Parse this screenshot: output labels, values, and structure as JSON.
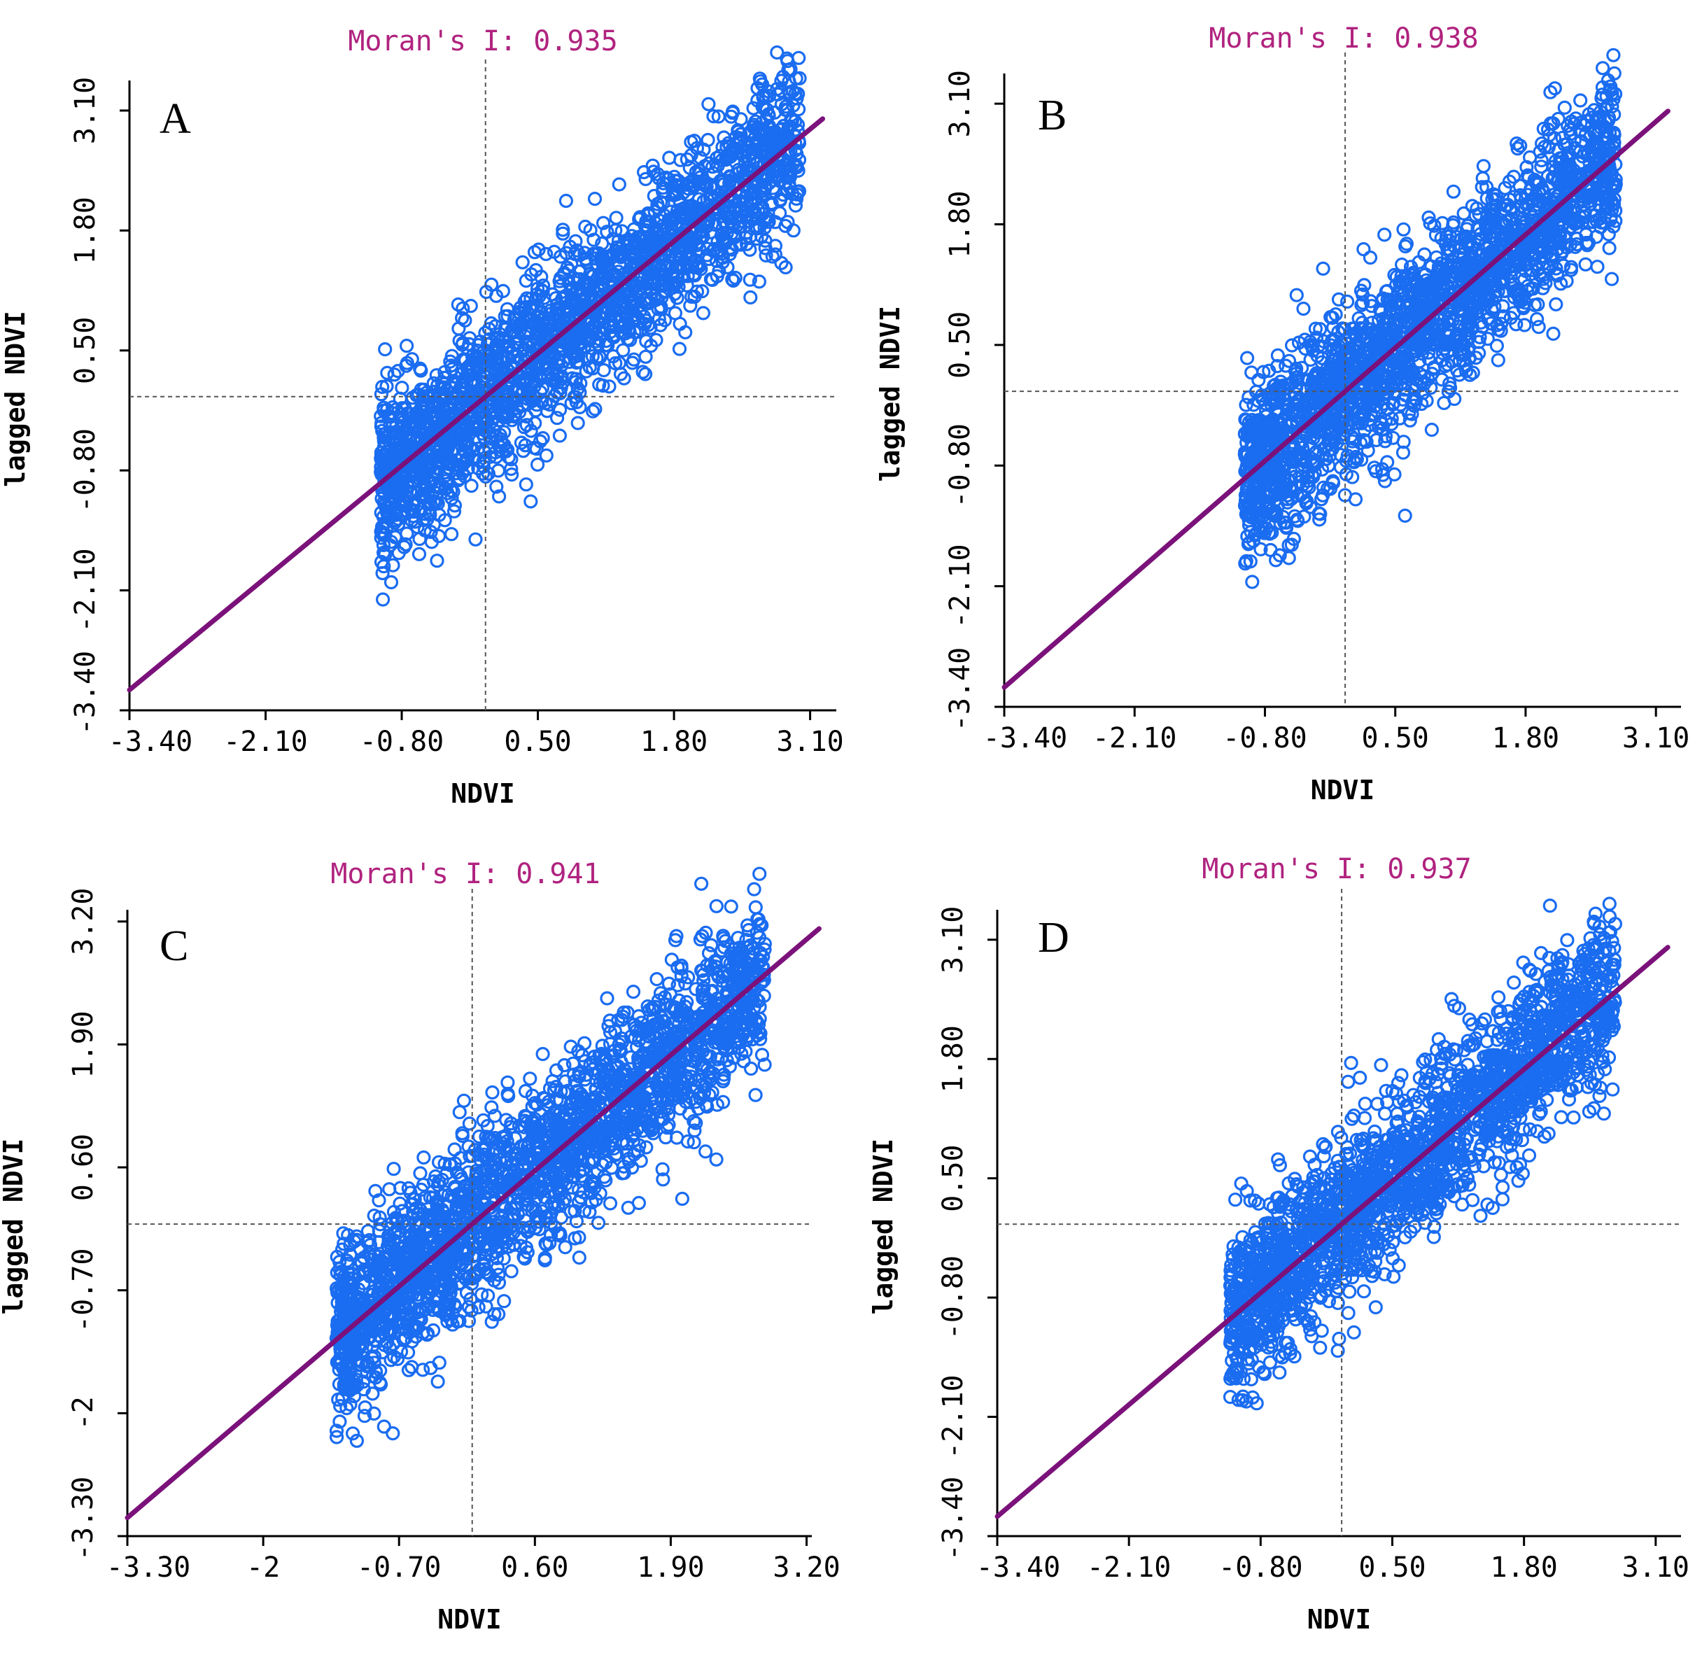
{
  "colors": {
    "points": "#1a6cf0",
    "fit_line": "#7b117a",
    "title": "#b0237f",
    "axis": "#000000",
    "reference_lines": "#555555"
  },
  "chart_data": [
    {
      "panel": "A",
      "type": "scatter",
      "title": "Moran's I: 0.935",
      "xlabel": "NDVI",
      "ylabel": "lagged NDVI",
      "xticks": [
        "-3.40",
        "-2.10",
        "-0.80",
        "0.50",
        "1.80",
        "3.10"
      ],
      "yticks": [
        "-3.40",
        "-2.10",
        "-0.80",
        "0.50",
        "1.80",
        "3.10"
      ],
      "xlim": [
        -3.4,
        3.35
      ],
      "ylim": [
        -3.4,
        3.35
      ],
      "x_mean": 0.0,
      "y_mean": 0.0,
      "slope": 0.935,
      "cloud_x": [
        -1.0,
        3.0
      ],
      "point_count": 2200,
      "point_spread": 0.46
    },
    {
      "panel": "B",
      "type": "scatter",
      "title": "Moran's I: 0.938",
      "xlabel": "NDVI",
      "ylabel": "lagged NDVI",
      "xticks": [
        "-3.40",
        "-2.10",
        "-0.80",
        "0.50",
        "1.80",
        "3.10"
      ],
      "yticks": [
        "-3.40",
        "-2.10",
        "-0.80",
        "0.50",
        "1.80",
        "3.10"
      ],
      "xlim": [
        -3.4,
        3.35
      ],
      "ylim": [
        -3.4,
        3.35
      ],
      "x_mean": 0.0,
      "y_mean": 0.0,
      "slope": 0.938,
      "cloud_x": [
        -1.0,
        2.7
      ],
      "point_count": 2200,
      "point_spread": 0.44
    },
    {
      "panel": "C",
      "type": "scatter",
      "title": "Moran's I: 0.941",
      "xlabel": "NDVI",
      "ylabel": "lagged NDVI",
      "xticks": [
        "-3.30",
        "-2",
        "-0.70",
        "0.60",
        "1.90",
        "3.20"
      ],
      "yticks": [
        "-3.30",
        "-2",
        "-0.70",
        "0.60",
        "1.90",
        "3.20"
      ],
      "xlim": [
        -3.3,
        3.25
      ],
      "ylim": [
        -3.3,
        3.25
      ],
      "x_mean": 0.0,
      "y_mean": 0.0,
      "slope": 0.941,
      "cloud_x": [
        -1.3,
        2.8
      ],
      "point_count": 2300,
      "point_spread": 0.45
    },
    {
      "panel": "D",
      "type": "scatter",
      "title": "Moran's I: 0.937",
      "xlabel": "NDVI",
      "ylabel": "lagged NDVI",
      "xticks": [
        "-3.40",
        "-2.10",
        "-0.80",
        "0.50",
        "1.80",
        "3.10"
      ],
      "yticks": [
        "-3.40",
        "-2.10",
        "-0.80",
        "0.50",
        "1.80",
        "3.10"
      ],
      "xlim": [
        -3.4,
        3.35
      ],
      "ylim": [
        -3.4,
        3.35
      ],
      "x_mean": 0.0,
      "y_mean": 0.0,
      "slope": 0.937,
      "cloud_x": [
        -1.1,
        2.7
      ],
      "point_count": 2100,
      "point_spread": 0.46
    }
  ]
}
